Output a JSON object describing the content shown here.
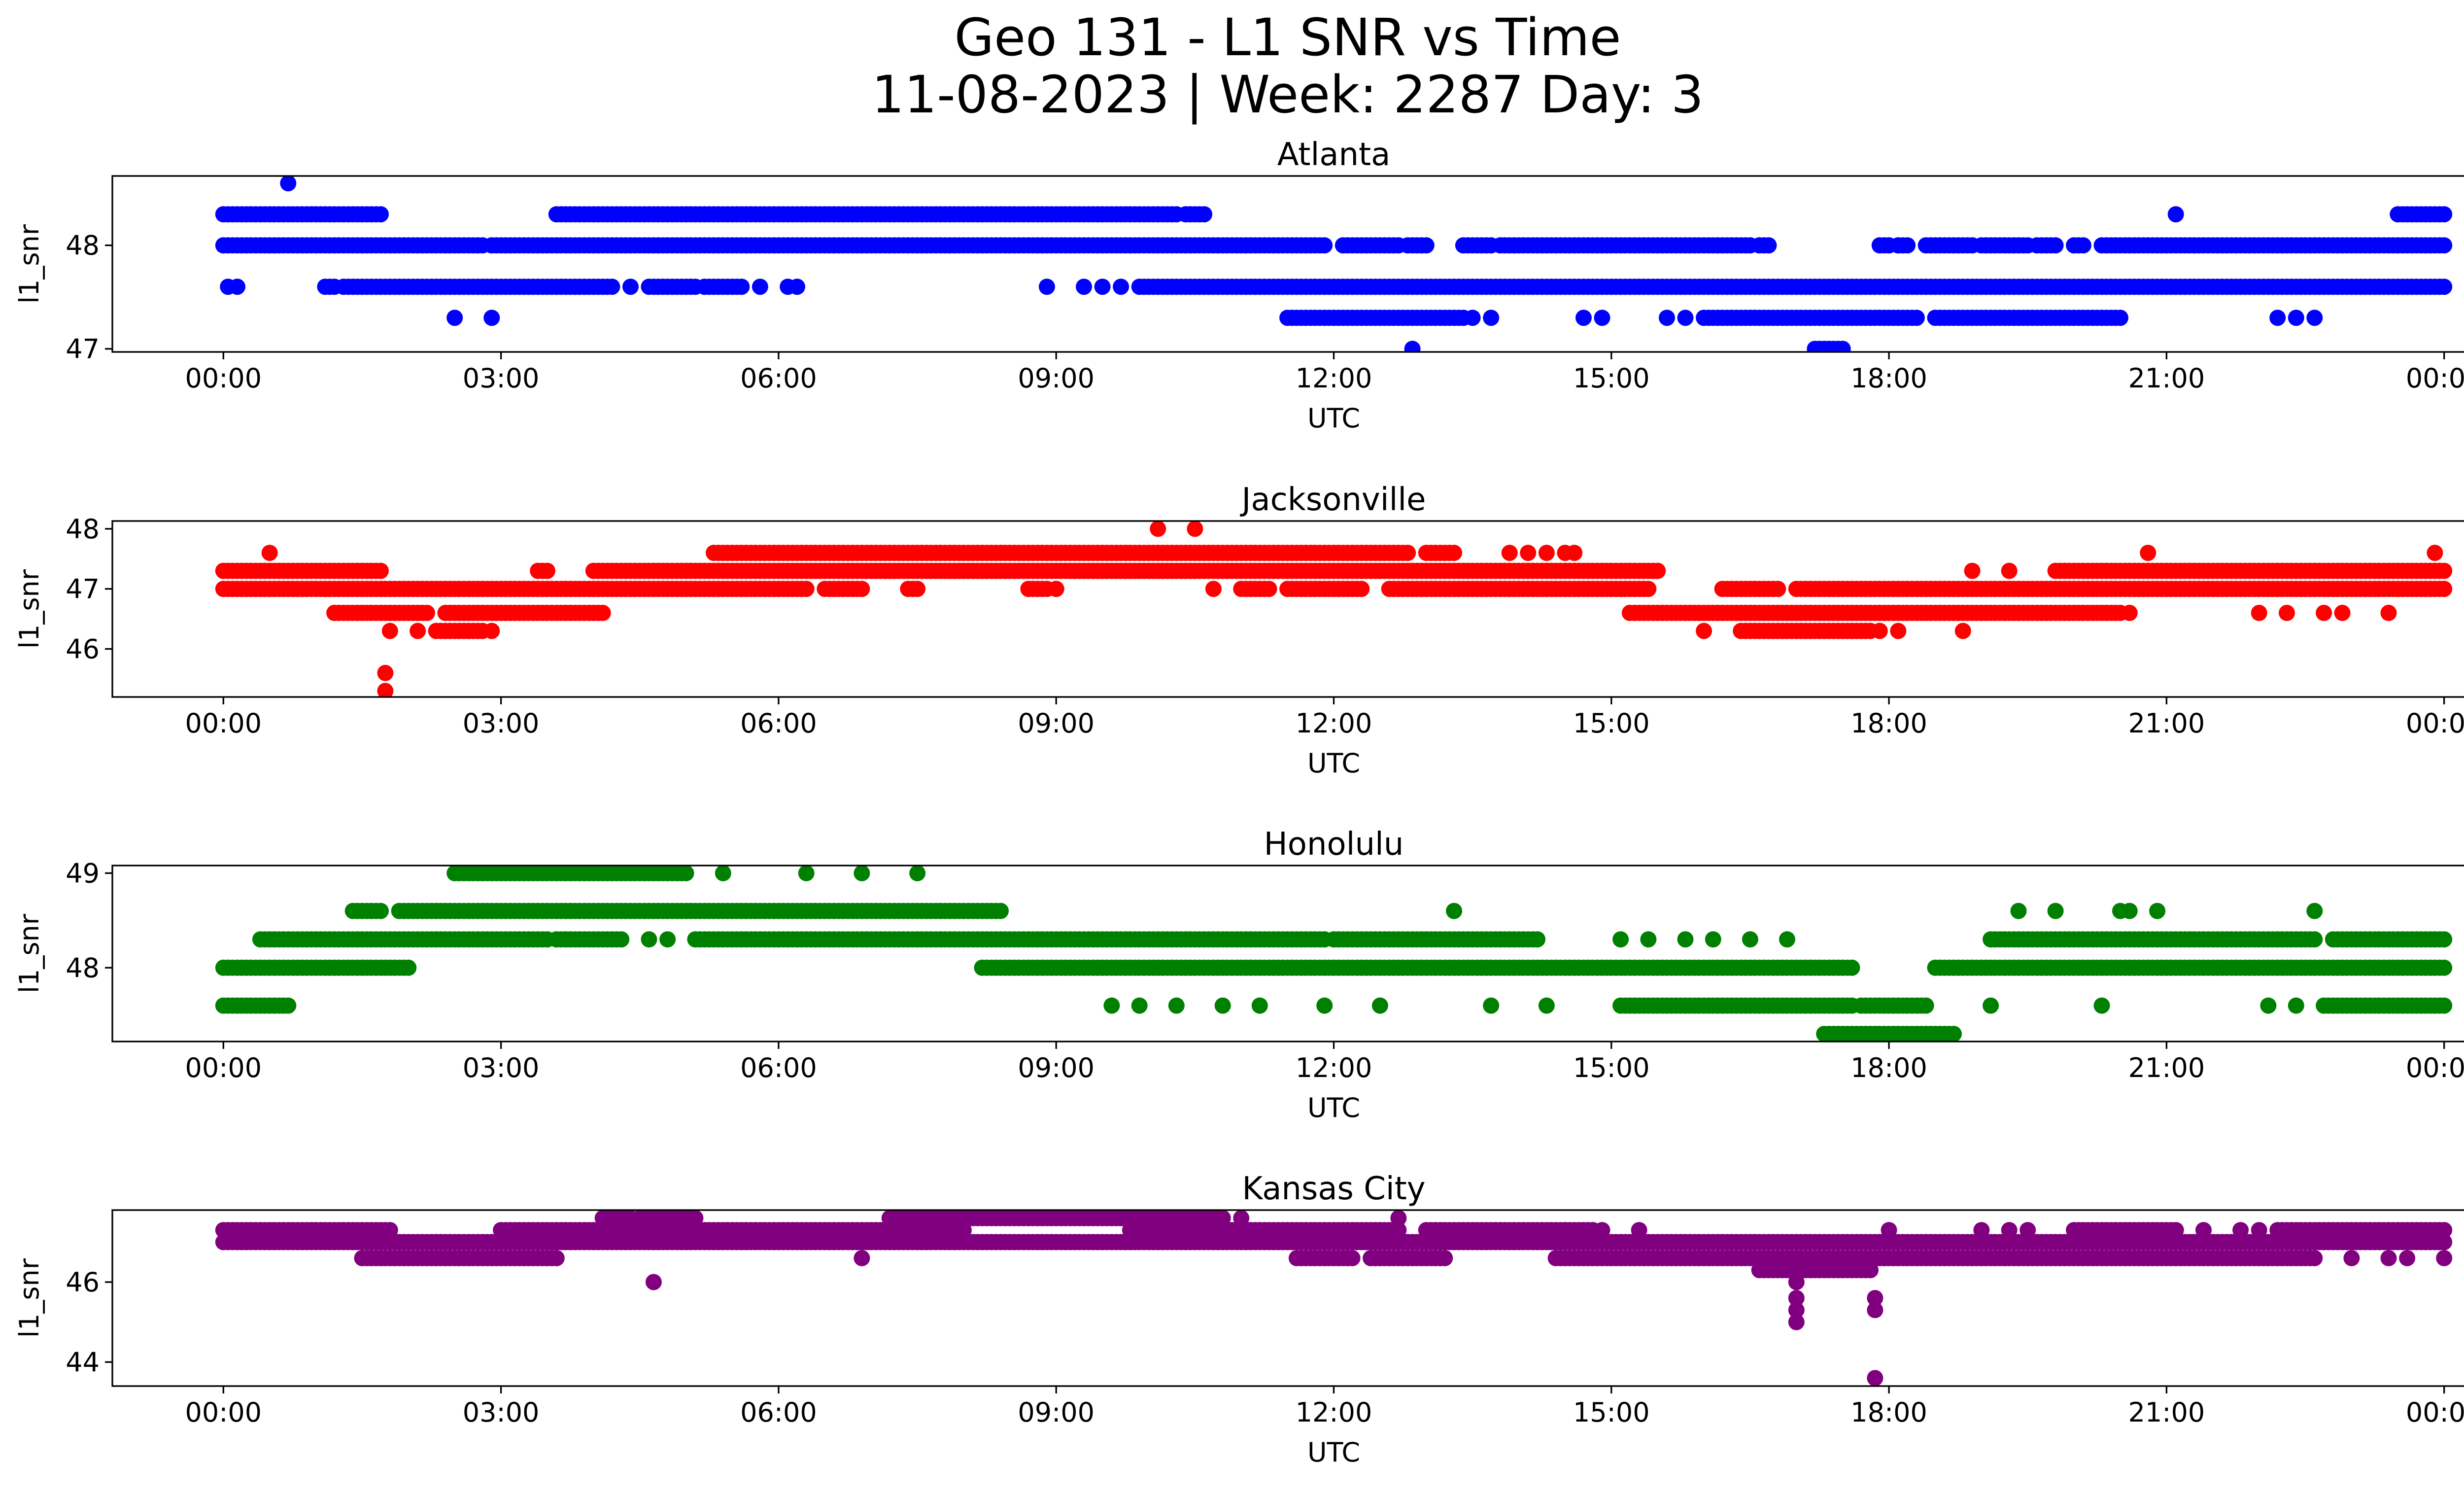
{
  "figure": {
    "title_line1": "Geo 131 - L1 SNR vs Time",
    "title_line2": "11-08-2023 | Week: 2287 Day: 3"
  },
  "chart_data": [
    {
      "type": "scatter",
      "title": "Atlanta",
      "xlabel": "UTC",
      "ylabel": "l1_snr",
      "color": "#0000ff",
      "xlim_hours": [
        -1.2,
        25.2
      ],
      "ylim": [
        46.97,
        48.67
      ],
      "xticks": [
        0,
        3,
        6,
        9,
        12,
        15,
        18,
        21,
        24
      ],
      "xtick_labels": [
        "00:00",
        "03:00",
        "06:00",
        "09:00",
        "12:00",
        "15:00",
        "18:00",
        "21:00",
        "00:00"
      ],
      "yticks": [
        47,
        48
      ],
      "ytick_labels": [
        "47",
        "48"
      ],
      "bands": [
        {
          "y": 48.0,
          "ranges": [
            [
              0.0,
              2.8
            ],
            [
              2.9,
              11.9
            ],
            [
              12.1,
              12.7
            ],
            [
              12.8,
              13.0
            ],
            [
              13.4,
              13.7
            ],
            [
              13.8,
              16.5
            ],
            [
              16.6,
              16.7
            ],
            [
              17.9,
              18.0
            ],
            [
              18.1,
              18.2
            ],
            [
              18.4,
              18.9
            ],
            [
              19.0,
              19.5
            ],
            [
              19.6,
              19.8
            ],
            [
              20.0,
              20.1
            ],
            [
              20.3,
              24.0
            ]
          ]
        },
        {
          "y": 48.3,
          "ranges": [
            [
              0.0,
              1.7
            ],
            [
              3.6,
              10.3
            ],
            [
              10.4,
              10.6
            ],
            [
              23.5,
              24.0
            ]
          ]
        },
        {
          "y": 47.6,
          "ranges": [
            [
              1.1,
              1.2
            ],
            [
              1.3,
              4.2
            ],
            [
              4.6,
              5.1
            ],
            [
              5.2,
              5.6
            ],
            [
              9.9,
              24.0
            ]
          ]
        },
        {
          "y": 47.3,
          "ranges": [
            [
              11.5,
              13.4
            ],
            [
              16.0,
              18.3
            ],
            [
              18.5,
              20.5
            ]
          ]
        },
        {
          "y": 47.0,
          "ranges": [
            [
              17.2,
              17.5
            ]
          ]
        }
      ],
      "points": [
        [
          0.05,
          47.6
        ],
        [
          0.15,
          47.6
        ],
        [
          0.7,
          48.6
        ],
        [
          2.5,
          47.3
        ],
        [
          2.9,
          47.3
        ],
        [
          4.4,
          47.6
        ],
        [
          5.8,
          47.6
        ],
        [
          6.1,
          47.6
        ],
        [
          6.2,
          47.6
        ],
        [
          8.9,
          47.6
        ],
        [
          9.3,
          47.6
        ],
        [
          9.5,
          47.6
        ],
        [
          9.7,
          47.6
        ],
        [
          13.5,
          47.3
        ],
        [
          13.7,
          47.3
        ],
        [
          14.7,
          47.3
        ],
        [
          14.9,
          47.3
        ],
        [
          15.6,
          47.3
        ],
        [
          15.8,
          47.3
        ],
        [
          21.1,
          48.3
        ],
        [
          22.2,
          47.3
        ],
        [
          22.4,
          47.3
        ],
        [
          22.6,
          47.3
        ],
        [
          12.85,
          47.0
        ]
      ]
    },
    {
      "type": "scatter",
      "title": "Jacksonville",
      "xlabel": "UTC",
      "ylabel": "l1_snr",
      "color": "#ff0000",
      "xlim_hours": [
        -1.2,
        25.2
      ],
      "ylim": [
        45.2,
        48.13
      ],
      "xticks": [
        0,
        3,
        6,
        9,
        12,
        15,
        18,
        21,
        24
      ],
      "xtick_labels": [
        "00:00",
        "03:00",
        "06:00",
        "09:00",
        "12:00",
        "15:00",
        "18:00",
        "21:00",
        "00:00"
      ],
      "yticks": [
        46,
        47,
        48
      ],
      "ytick_labels": [
        "46",
        "47",
        "48"
      ],
      "bands": [
        {
          "y": 47.0,
          "ranges": [
            [
              0.0,
              6.3
            ],
            [
              6.5,
              6.9
            ],
            [
              7.4,
              7.5
            ],
            [
              8.7,
              8.9
            ],
            [
              11.0,
              11.3
            ],
            [
              11.5,
              12.3
            ],
            [
              12.6,
              15.4
            ],
            [
              16.2,
              16.8
            ],
            [
              17.0,
              24.0
            ]
          ]
        },
        {
          "y": 47.3,
          "ranges": [
            [
              0.0,
              1.7
            ],
            [
              3.4,
              3.5
            ],
            [
              4.0,
              15.5
            ],
            [
              19.8,
              24.0
            ]
          ]
        },
        {
          "y": 46.6,
          "ranges": [
            [
              1.2,
              2.2
            ],
            [
              2.4,
              4.1
            ],
            [
              15.2,
              20.5
            ]
          ]
        },
        {
          "y": 47.6,
          "ranges": [
            [
              5.3,
              12.8
            ],
            [
              13.0,
              13.3
            ]
          ]
        },
        {
          "y": 46.3,
          "ranges": [
            [
              2.3,
              2.8
            ],
            [
              16.4,
              17.8
            ]
          ]
        }
      ],
      "points": [
        [
          0.5,
          47.6
        ],
        [
          1.8,
          46.3
        ],
        [
          2.1,
          46.3
        ],
        [
          2.9,
          46.3
        ],
        [
          1.75,
          45.6
        ],
        [
          1.75,
          45.3
        ],
        [
          10.1,
          48.0
        ],
        [
          10.5,
          48.0
        ],
        [
          9.0,
          47.0
        ],
        [
          10.7,
          47.0
        ],
        [
          13.9,
          47.6
        ],
        [
          14.1,
          47.6
        ],
        [
          14.3,
          47.6
        ],
        [
          14.5,
          47.6
        ],
        [
          14.6,
          47.6
        ],
        [
          16.0,
          46.3
        ],
        [
          17.6,
          46.3
        ],
        [
          17.9,
          46.3
        ],
        [
          18.1,
          46.3
        ],
        [
          18.8,
          46.3
        ],
        [
          18.9,
          47.3
        ],
        [
          19.3,
          47.3
        ],
        [
          20.8,
          47.6
        ],
        [
          20.6,
          46.6
        ],
        [
          22.0,
          46.6
        ],
        [
          22.3,
          46.6
        ],
        [
          22.7,
          46.6
        ],
        [
          22.9,
          46.6
        ],
        [
          23.4,
          46.6
        ],
        [
          23.9,
          47.6
        ]
      ]
    },
    {
      "type": "scatter",
      "title": "Honolulu",
      "xlabel": "UTC",
      "ylabel": "l1_snr",
      "color": "#008000",
      "xlim_hours": [
        -1.2,
        25.2
      ],
      "ylim": [
        47.22,
        49.08
      ],
      "xticks": [
        0,
        3,
        6,
        9,
        12,
        15,
        18,
        21,
        24
      ],
      "xtick_labels": [
        "00:00",
        "03:00",
        "06:00",
        "09:00",
        "12:00",
        "15:00",
        "18:00",
        "21:00",
        "00:00"
      ],
      "yticks": [
        48,
        49
      ],
      "ytick_labels": [
        "48",
        "49"
      ],
      "bands": [
        {
          "y": 48.0,
          "ranges": [
            [
              0.0,
              2.0
            ],
            [
              8.2,
              17.6
            ],
            [
              18.5,
              24.0
            ]
          ]
        },
        {
          "y": 47.6,
          "ranges": [
            [
              0.0,
              0.7
            ],
            [
              15.1,
              17.6
            ],
            [
              17.7,
              18.4
            ],
            [
              22.7,
              24.0
            ]
          ]
        },
        {
          "y": 48.3,
          "ranges": [
            [
              0.4,
              3.5
            ],
            [
              3.6,
              4.3
            ],
            [
              5.1,
              11.9
            ],
            [
              12.0,
              14.2
            ],
            [
              19.1,
              22.6
            ],
            [
              22.8,
              24.0
            ]
          ]
        },
        {
          "y": 48.6,
          "ranges": [
            [
              1.4,
              1.7
            ],
            [
              1.9,
              8.4
            ]
          ]
        },
        {
          "y": 49.0,
          "ranges": [
            [
              2.5,
              5.0
            ]
          ]
        },
        {
          "y": 47.3,
          "ranges": [
            [
              17.3,
              18.7
            ]
          ]
        }
      ],
      "points": [
        [
          5.4,
          49.0
        ],
        [
          6.3,
          49.0
        ],
        [
          6.9,
          49.0
        ],
        [
          7.5,
          49.0
        ],
        [
          4.6,
          48.3
        ],
        [
          4.8,
          48.3
        ],
        [
          13.3,
          48.6
        ],
        [
          19.4,
          48.6
        ],
        [
          19.8,
          48.6
        ],
        [
          20.5,
          48.6
        ],
        [
          20.6,
          48.6
        ],
        [
          20.9,
          48.6
        ],
        [
          22.6,
          48.6
        ],
        [
          15.1,
          48.3
        ],
        [
          15.4,
          48.3
        ],
        [
          15.8,
          48.3
        ],
        [
          16.1,
          48.3
        ],
        [
          16.5,
          48.3
        ],
        [
          16.9,
          48.3
        ],
        [
          9.6,
          47.6
        ],
        [
          9.9,
          47.6
        ],
        [
          10.3,
          47.6
        ],
        [
          10.8,
          47.6
        ],
        [
          11.2,
          47.6
        ],
        [
          11.9,
          47.6
        ],
        [
          12.5,
          47.6
        ],
        [
          13.7,
          47.6
        ],
        [
          14.3,
          47.6
        ],
        [
          19.1,
          47.6
        ],
        [
          20.3,
          47.6
        ],
        [
          22.1,
          47.6
        ],
        [
          22.4,
          47.6
        ],
        [
          23.7,
          48.3
        ],
        [
          23.9,
          48.3
        ]
      ]
    },
    {
      "type": "scatter",
      "title": "Kansas City",
      "xlabel": "UTC",
      "ylabel": "l1_snr",
      "color": "#800080",
      "xlim_hours": [
        -1.2,
        25.2
      ],
      "ylim": [
        43.4,
        47.8
      ],
      "xticks": [
        0,
        3,
        6,
        9,
        12,
        15,
        18,
        21,
        24
      ],
      "xtick_labels": [
        "00:00",
        "03:00",
        "06:00",
        "09:00",
        "12:00",
        "15:00",
        "18:00",
        "21:00",
        "00:00"
      ],
      "yticks": [
        44,
        46
      ],
      "ytick_labels": [
        "44",
        "46"
      ],
      "bands": [
        {
          "y": 47.0,
          "ranges": [
            [
              0.0,
              24.0
            ]
          ]
        },
        {
          "y": 47.3,
          "ranges": [
            [
              0.0,
              1.8
            ],
            [
              3.0,
              8.0
            ],
            [
              9.8,
              12.7
            ],
            [
              13.0,
              14.8
            ],
            [
              20.0,
              21.1
            ],
            [
              22.2,
              24.0
            ]
          ]
        },
        {
          "y": 46.6,
          "ranges": [
            [
              1.5,
              3.6
            ],
            [
              11.6,
              12.2
            ],
            [
              12.4,
              13.2
            ],
            [
              14.4,
              22.6
            ]
          ]
        },
        {
          "y": 47.6,
          "ranges": [
            [
              4.1,
              4.4
            ],
            [
              4.5,
              5.1
            ],
            [
              7.2,
              10.8
            ]
          ]
        },
        {
          "y": 46.3,
          "ranges": [
            [
              16.6,
              17.8
            ]
          ]
        }
      ],
      "points": [
        [
          4.65,
          46.0
        ],
        [
          6.9,
          46.6
        ],
        [
          11.0,
          47.6
        ],
        [
          14.9,
          47.3
        ],
        [
          15.3,
          47.3
        ],
        [
          18.0,
          47.3
        ],
        [
          19.0,
          47.3
        ],
        [
          19.3,
          47.3
        ],
        [
          19.5,
          47.3
        ],
        [
          21.4,
          47.3
        ],
        [
          21.8,
          47.3
        ],
        [
          22.0,
          47.3
        ],
        [
          23.0,
          46.6
        ],
        [
          23.4,
          46.6
        ],
        [
          23.6,
          46.6
        ],
        [
          24.0,
          46.6
        ],
        [
          17.0,
          46.0
        ],
        [
          17.0,
          45.6
        ],
        [
          17.0,
          45.3
        ],
        [
          17.0,
          45.0
        ],
        [
          17.85,
          45.6
        ],
        [
          17.85,
          45.3
        ],
        [
          17.85,
          43.6
        ],
        [
          12.7,
          47.6
        ],
        [
          14.5,
          47.3
        ]
      ]
    }
  ]
}
